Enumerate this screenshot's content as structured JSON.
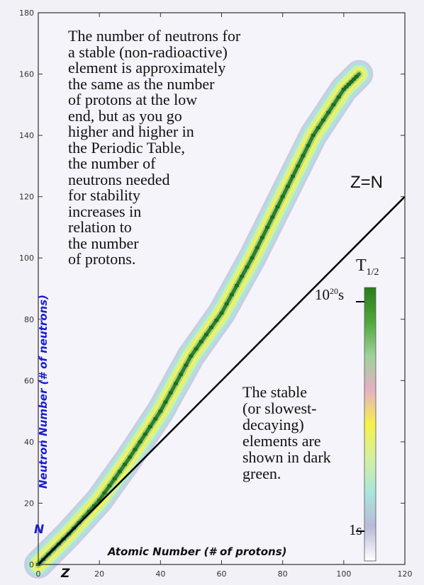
{
  "chart_data": {
    "type": "heatmap",
    "xlabel": "Atomic Number (# of protons)",
    "ylabel": "Neutron Number (# of neutrons)",
    "x_symbol": "Z",
    "y_symbol": "N",
    "xlim": [
      0,
      120
    ],
    "ylim": [
      0,
      180
    ],
    "x_ticks": [
      "0",
      "20",
      "40",
      "60",
      "80",
      "100",
      "120"
    ],
    "y_ticks": [
      "0",
      "20",
      "40",
      "60",
      "80",
      "100",
      "120",
      "140",
      "160",
      "180"
    ],
    "reference_line": {
      "label": "Z=N",
      "from": [
        0,
        0
      ],
      "to": [
        120,
        120
      ]
    },
    "band_centerline": [
      {
        "z": 0,
        "n": 0
      },
      {
        "z": 10,
        "n": 10
      },
      {
        "z": 20,
        "n": 21
      },
      {
        "z": 30,
        "n": 35
      },
      {
        "z": 40,
        "n": 50
      },
      {
        "z": 50,
        "n": 68
      },
      {
        "z": 60,
        "n": 82
      },
      {
        "z": 70,
        "n": 100
      },
      {
        "z": 80,
        "n": 120
      },
      {
        "z": 90,
        "n": 140
      },
      {
        "z": 100,
        "n": 155
      },
      {
        "z": 105,
        "n": 160
      }
    ],
    "colorbar": {
      "title": "T",
      "title_sub": "1/2",
      "max_label_base": "10",
      "max_label_exp": "20",
      "max_label_unit": "s",
      "min_label": "1s",
      "colors": [
        "#2b7a1d",
        "#4fa83a",
        "#9ed19a",
        "#e6b0c4",
        "#f5f24a",
        "#d4f0a0",
        "#a8e6dc",
        "#b9b9da",
        "#ffffff"
      ]
    },
    "stable_color": "#1f6e12"
  },
  "annotations": {
    "main_text": "The number of neutrons for\na stable (non-radioactive)\nelement is approximately\nthe same as the number\nof protons at the low\nend, but as you go\nhigher and higher in\nthe Periodic Table,\nthe number of\nneutrons needed\nfor stability\nincreases in\nrelation to\nthe number\nof protons.",
    "note_text": "The stable\n(or slowest-\ndecaying)\nelements are\nshown in dark\ngreen.",
    "zn_label": "Z=N"
  }
}
